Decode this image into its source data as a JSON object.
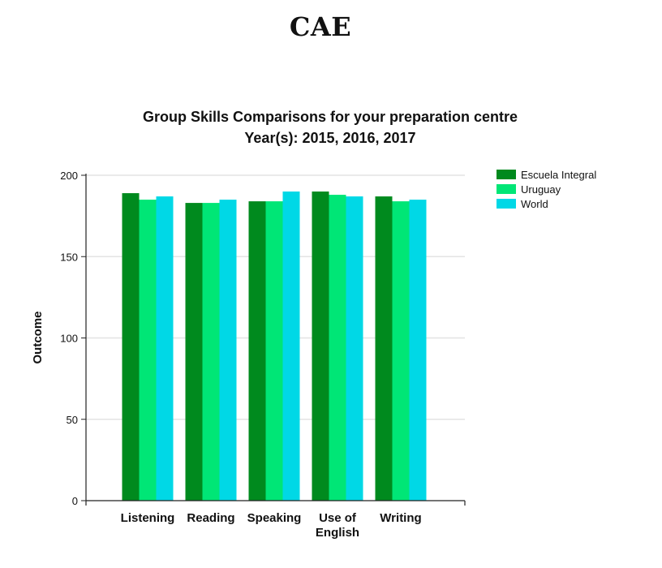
{
  "page": {
    "heading": "CAE"
  },
  "chart_data": {
    "type": "bar",
    "title": "Group Skills Comparisons for your preparation centre",
    "subtitle": "Year(s): 2015, 2016, 2017",
    "xlabel": "",
    "ylabel": "Outcome",
    "ylim": [
      0,
      200
    ],
    "yticks": [
      0,
      50,
      100,
      150,
      200
    ],
    "grid": true,
    "legend_position": "right",
    "categories": [
      [
        "Listening"
      ],
      [
        "Reading"
      ],
      [
        "Speaking"
      ],
      [
        "Use of",
        "English"
      ],
      [
        "Writing"
      ]
    ],
    "series": [
      {
        "name": "Escuela Integral",
        "color": "#008a1e",
        "values": [
          189,
          183,
          184,
          190,
          187
        ]
      },
      {
        "name": "Uruguay",
        "color": "#00e676",
        "values": [
          185,
          183,
          184,
          188,
          184
        ]
      },
      {
        "name": "World",
        "color": "#00d8e6",
        "values": [
          187,
          185,
          190,
          187,
          185
        ]
      }
    ]
  }
}
